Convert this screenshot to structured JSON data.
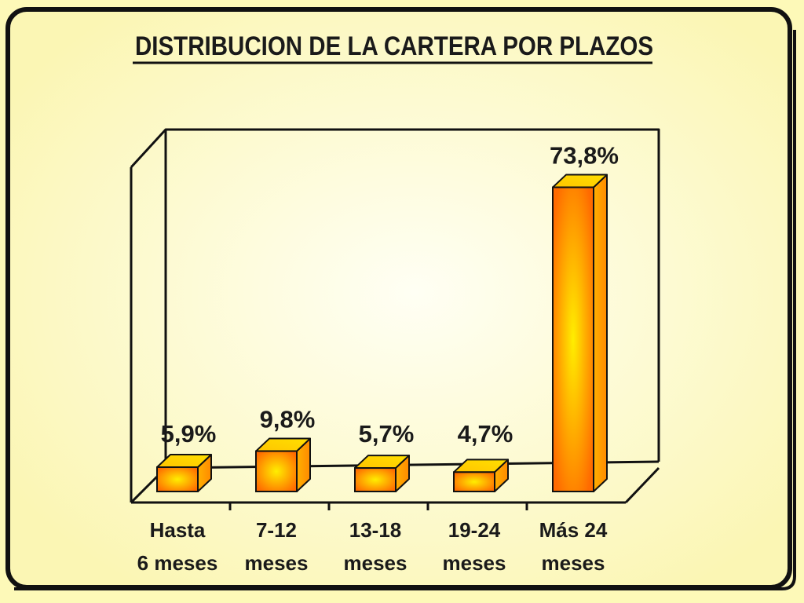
{
  "chart_data": {
    "type": "bar",
    "title": "DISTRIBUCION DE LA CARTERA POR PLAZOS",
    "categories": [
      [
        "Hasta",
        "6 meses"
      ],
      [
        "7-12",
        "meses"
      ],
      [
        "13-18",
        "meses"
      ],
      [
        "19-24",
        "meses"
      ],
      [
        "Más 24",
        "meses"
      ]
    ],
    "values": [
      5.9,
      9.8,
      5.7,
      4.7,
      73.8
    ],
    "value_labels": [
      "5,9%",
      "9,8%",
      "5,7%",
      "4,7%",
      "73,8%"
    ],
    "ylim": [
      0,
      80
    ],
    "grid": false,
    "style": "3d-column",
    "colors": {
      "bar_light": "#ffee00",
      "bar_dark": "#ff5a00",
      "background": "#fdf9b8",
      "panel_center": "#fffff0",
      "frame": "#111111"
    }
  }
}
